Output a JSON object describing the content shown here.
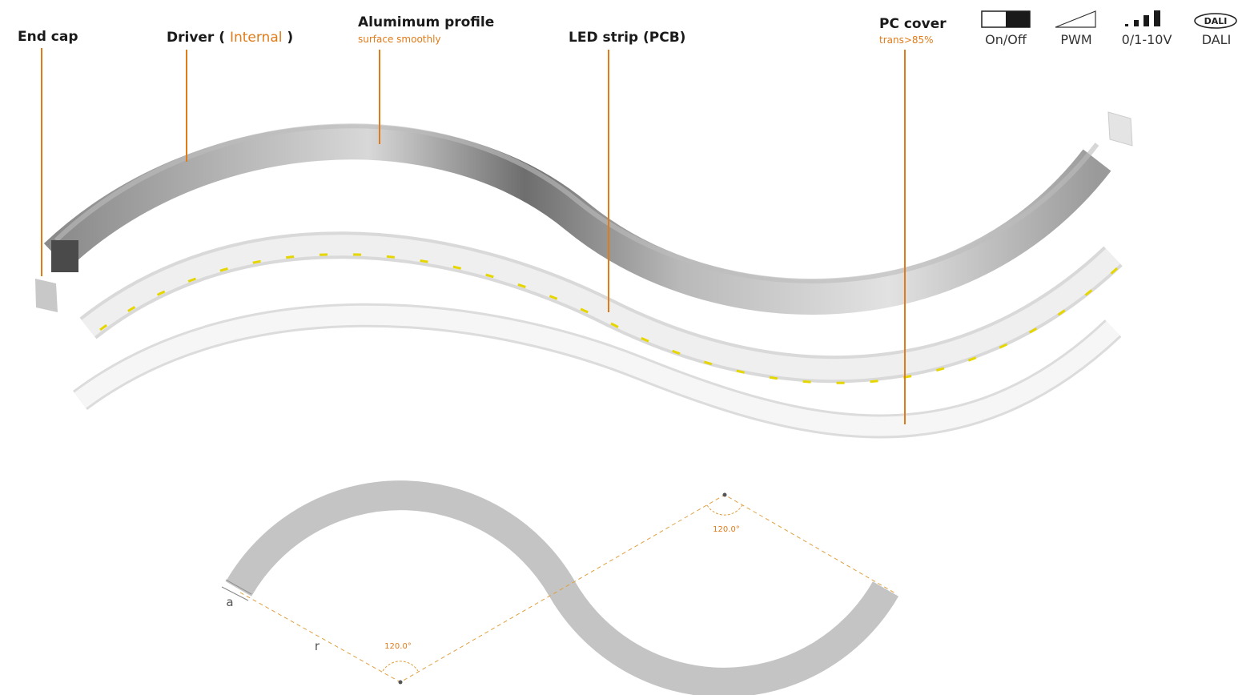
{
  "labels": {
    "end_cap": "End cap",
    "driver_prefix": "Driver (",
    "driver_highlight": "Internal",
    "driver_suffix": ")",
    "profile": "Alumimum profile",
    "profile_note": "surface smoothly",
    "led_strip": "LED strip (PCB)",
    "pc_cover": "PC cover",
    "pc_cover_note": "trans>85%"
  },
  "dimming": [
    "On/Off",
    "PWM",
    "0/1-10V",
    "DALI"
  ],
  "dali_icon": "DALI",
  "dimensions": {
    "width": "a",
    "radius": "r",
    "angles": [
      "120.0°",
      "120.0°"
    ]
  }
}
